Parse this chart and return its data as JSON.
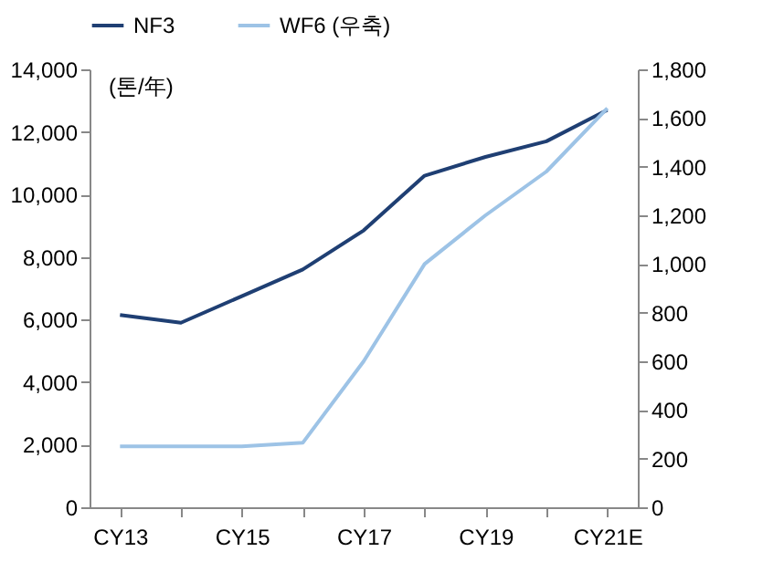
{
  "chart_data": {
    "type": "line",
    "ylabel": "(톤/年)",
    "legend": "top",
    "grid": false,
    "categories": [
      "CY13",
      null,
      "CY15",
      null,
      "CY17",
      null,
      "CY19",
      null,
      "CY21E"
    ],
    "series": [
      {
        "name": "NF3",
        "color": "#1f3f73",
        "values": [
          6150,
          5900,
          6750,
          7600,
          8850,
          10600,
          11200,
          11700,
          12700
        ]
      },
      {
        "name": "WF6 (우축)",
        "color": "#9dc3e6",
        "axis": "y2",
        "values": [
          250,
          250,
          250,
          265,
          600,
          1000,
          1200,
          1380,
          1640
        ]
      }
    ],
    "ylim": [
      0,
      14000
    ],
    "yticks": [
      0,
      {
        "value": 2000,
        "label": "2,000"
      },
      {
        "value": 4000,
        "label": "4,000"
      },
      {
        "value": 6000,
        "label": "6,000"
      },
      {
        "value": 8000,
        "label": "8,000"
      },
      {
        "value": 10000,
        "label": "10,000"
      },
      {
        "value": 12000,
        "label": "12,000"
      },
      {
        "value": 14000,
        "label": "14,000"
      }
    ],
    "y2lim": [
      0,
      1800
    ],
    "y2ticks": [
      0,
      200,
      400,
      600,
      800,
      {
        "value": 1000,
        "label": "1,000"
      },
      {
        "value": 1200,
        "label": "1,200"
      },
      {
        "value": 1400,
        "label": "1,400"
      },
      {
        "value": 1600,
        "label": "1,600"
      },
      {
        "value": 1800,
        "label": "1,800"
      }
    ]
  }
}
